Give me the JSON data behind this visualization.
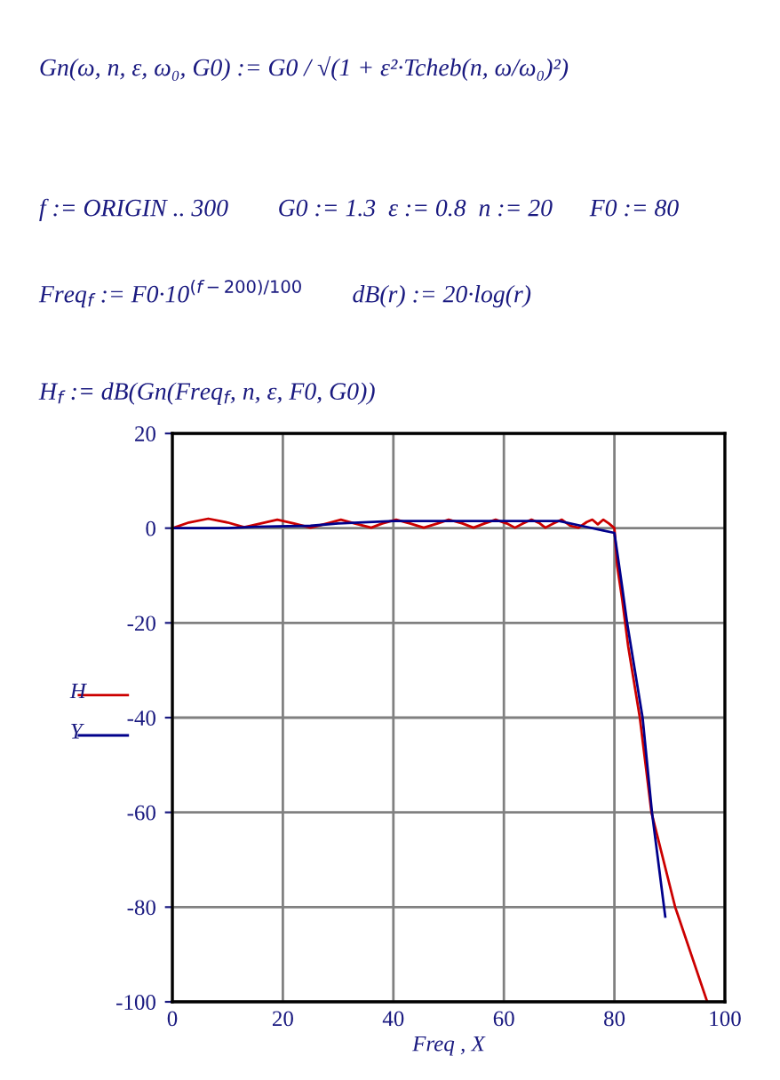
{
  "chart_data": {
    "type": "line",
    "annotations": [
      "Gn(ω, n, ε, ω₀, G0) := G0 / √(1 + ε²·Tcheb(n, ω/ω₀)²)",
      "f := ORIGIN .. 300        G0 := 1.3  ε := 0.8  n := 20      F0 := 80",
      "Freq$_{f}$ := F0·10$^{(f−200)/100}$        dB(r) := 20·log(r)",
      "H$_{f}$ := dB(Gn(Freq$_{f}$, n, ε, F0, G0))"
    ],
    "xlabel": "Freq , X",
    "series": [
      {
        "name": "H",
        "color": "#cc0000",
        "x": [
          0,
          3,
          6.5,
          10,
          13,
          16,
          19,
          22,
          25,
          28,
          30.5,
          33,
          36,
          38,
          40.5,
          43,
          45.5,
          48,
          50,
          52.5,
          54.5,
          56.5,
          58.5,
          60.5,
          62,
          63.5,
          65,
          66.5,
          67.5,
          69,
          70.5,
          72,
          73.5,
          75,
          76,
          77,
          78,
          79,
          80,
          80.5,
          81.4,
          82.5,
          84.6,
          86.7,
          91,
          96.8
        ],
        "values": [
          0,
          1.2,
          2,
          1.2,
          0.2,
          1,
          1.8,
          1,
          0.1,
          1,
          1.8,
          1,
          0.1,
          1,
          1.8,
          1,
          0.1,
          1,
          1.8,
          1,
          0.1,
          1,
          1.8,
          1,
          0.1,
          1,
          1.8,
          1,
          0.1,
          1,
          1.8,
          0.5,
          0.1,
          1.3,
          1.8,
          0.8,
          1.8,
          1,
          0,
          -8,
          -15,
          -25,
          -40,
          -60,
          -80,
          -100
        ]
      },
      {
        "name": "Y",
        "color": "#00008b",
        "x": [
          0,
          10,
          15,
          25,
          30,
          40,
          50,
          70,
          74,
          78,
          80,
          80.5,
          81.4,
          82.3,
          85.1,
          86.8,
          89.2
        ],
        "values": [
          0,
          0,
          0.3,
          0.5,
          1,
          1.5,
          1.5,
          1.5,
          0.5,
          -0.5,
          -1,
          -5,
          -12.4,
          -20,
          -40,
          -60,
          -82
        ]
      }
    ],
    "xlim": [
      0,
      100
    ],
    "xticks": [
      0,
      20,
      40,
      60,
      80,
      100
    ],
    "ylim": [
      -100,
      20
    ],
    "yticks": [
      -100,
      -80,
      -60,
      -40,
      -20,
      0,
      20
    ],
    "grid": true,
    "legend": "left",
    "marker": "none",
    "line_style": "solid"
  }
}
